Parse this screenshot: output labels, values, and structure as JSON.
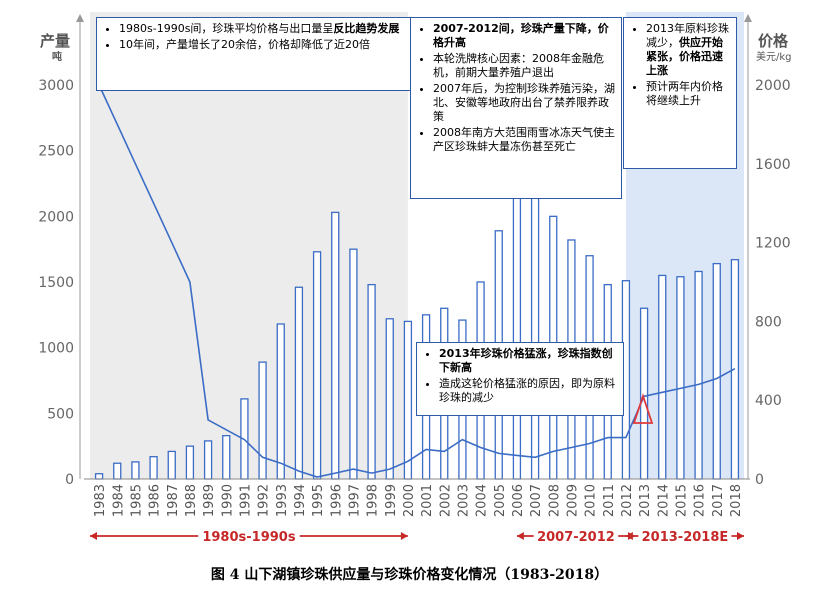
{
  "caption": "图 4 山下湖镇珍珠供应量与珍珠价格变化情况（1983-2018）",
  "chart_data": {
    "type": "bar+line",
    "categories": [
      "1983",
      "1984",
      "1985",
      "1986",
      "1987",
      "1988",
      "1989",
      "1990",
      "1991",
      "1992",
      "1993",
      "1994",
      "1995",
      "1996",
      "1997",
      "1998",
      "1999",
      "2000",
      "2001",
      "2002",
      "2003",
      "2004",
      "2005",
      "2006",
      "2007",
      "2008",
      "2009",
      "2010",
      "2011",
      "2012",
      "2013",
      "2014",
      "2015",
      "2016",
      "2017",
      "2018"
    ],
    "series": [
      {
        "axis": "left",
        "kind": "bar",
        "values": [
          40,
          120,
          130,
          170,
          210,
          250,
          290,
          330,
          610,
          890,
          1180,
          1460,
          1730,
          2030,
          1750,
          1480,
          1220,
          1200,
          1250,
          1300,
          1210,
          1500,
          1890,
          2240,
          2230,
          2000,
          1820,
          1700,
          1480,
          1510,
          1300,
          1550,
          1540,
          1580,
          1640,
          1670
        ]
      },
      {
        "axis": "right",
        "kind": "line",
        "values": [
          2000,
          1800,
          1600,
          1400,
          1200,
          1000,
          300,
          250,
          200,
          110,
          80,
          40,
          10,
          30,
          50,
          30,
          50,
          90,
          150,
          140,
          200,
          160,
          130,
          120,
          110,
          140,
          160,
          180,
          210,
          210,
          420,
          440,
          460,
          480,
          510,
          560
        ]
      }
    ],
    "y_left": {
      "label": "产量",
      "unit": "吨",
      "ylim": [
        0,
        3000
      ],
      "ticks": [
        0,
        500,
        1000,
        1500,
        2000,
        2500,
        3000
      ]
    },
    "y_right": {
      "label": "价格",
      "unit": "美元/kg",
      "ylim": [
        0,
        2000
      ],
      "ticks": [
        0,
        400,
        800,
        1200,
        1600,
        2000
      ]
    },
    "x_periods": [
      {
        "label": "1980s-1990s",
        "from": "1983",
        "to": "2000"
      },
      {
        "label": "2007-2012",
        "from": "2006",
        "to": "2012"
      },
      {
        "label": "2013-2018E",
        "from": "2012",
        "to": "2018"
      }
    ],
    "shaded_periods": [
      "1983-2000",
      "2013-2018"
    ],
    "marker": {
      "type": "triangle",
      "at": "2013"
    },
    "annotations": [
      {
        "id": "a1",
        "items": [
          {
            "text": "1980s-1990s间，珍珠平均价格与出口量呈",
            "bold": "反比趋势发展"
          },
          {
            "text": "10年间，产量增长了20余倍，价格却降低了近20倍"
          }
        ]
      },
      {
        "id": "a2",
        "items": [
          {
            "bold": "2007-2012间，珍珠产量下降，价格升高",
            "text": ""
          },
          {
            "text": "本轮洗牌核心因素：2008年金融危机，前期大量养殖户退出"
          },
          {
            "text": "2007年后，为控制珍珠养殖污染，湖北、安徽等地政府出台了禁养限养政策"
          },
          {
            "text": "2008年南方大范围雨雪冰冻天气使主产区珍珠蚌大量冻伤甚至死亡"
          }
        ]
      },
      {
        "id": "a3",
        "items": [
          {
            "text": "2013年原料珍珠减少，",
            "bold": "供应开始紧张，价格迅速上涨"
          },
          {
            "text": "预计两年内价格将继续上升"
          }
        ]
      },
      {
        "id": "a4",
        "items": [
          {
            "bold": "2013年珍珠价格猛涨，珍珠指数创下新高",
            "text": ""
          },
          {
            "text": "造成这轮价格猛涨的原因，即为原料珍珠的减少"
          }
        ]
      }
    ]
  }
}
